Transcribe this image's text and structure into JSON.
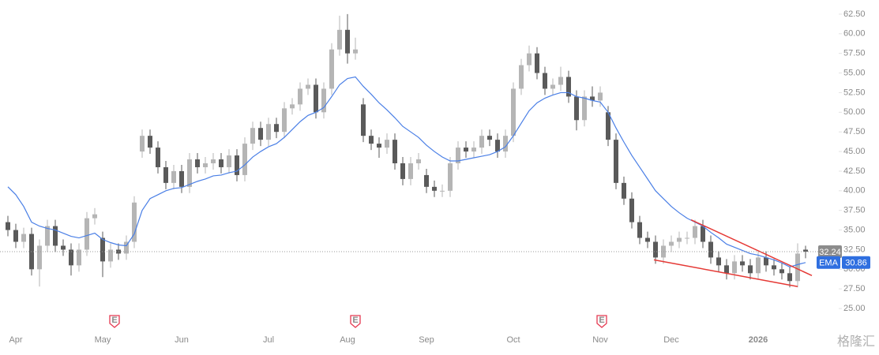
{
  "chart_data": {
    "type": "candlestick",
    "categories": [
      null,
      "Apr",
      null,
      null,
      null,
      null,
      null,
      null,
      null,
      null,
      null,
      null,
      "May",
      null,
      null,
      null,
      null,
      null,
      null,
      null,
      null,
      null,
      "Jun",
      null,
      null,
      null,
      null,
      null,
      null,
      null,
      null,
      null,
      null,
      "Jul",
      null,
      null,
      null,
      null,
      null,
      null,
      null,
      null,
      null,
      "Aug",
      null,
      null,
      null,
      null,
      null,
      null,
      null,
      null,
      null,
      "Sep",
      null,
      null,
      null,
      null,
      null,
      null,
      null,
      null,
      null,
      null,
      "Oct",
      null,
      null,
      null,
      null,
      null,
      null,
      null,
      null,
      null,
      null,
      "Nov",
      null,
      null,
      null,
      null,
      null,
      null,
      null,
      null,
      "Dec",
      null,
      null,
      null,
      null,
      null,
      null,
      null,
      null,
      null,
      null,
      "2026",
      null,
      null,
      null,
      null,
      null,
      null
    ],
    "open": [
      36,
      35,
      33.5,
      34.5,
      30,
      33,
      35.5,
      33,
      32.5,
      30.5,
      32.5,
      36.5,
      34,
      31,
      32.5,
      32,
      33.5,
      45,
      47,
      45.5,
      43,
      41,
      42.5,
      40.5,
      44,
      43,
      43.5,
      44,
      43,
      44.5,
      42,
      46,
      48,
      46.5,
      48.5,
      47.5,
      50.5,
      51,
      53,
      53.5,
      50,
      53,
      58,
      60.5,
      57.5,
      51,
      47,
      46,
      45.5,
      46.5,
      43.5,
      41.5,
      43.5,
      42,
      40.5,
      40,
      40,
      43.5,
      45.5,
      45,
      45.5,
      47,
      46.5,
      45,
      47,
      53,
      56,
      57.5,
      55,
      53,
      53.5,
      54.5,
      52,
      49,
      52,
      51.5,
      50,
      46.5,
      41,
      39,
      36,
      34,
      33.5,
      31.5,
      33,
      33.5,
      34,
      34,
      35.5,
      33.5,
      31.5,
      30.5,
      29.5,
      31,
      30.5,
      29.5,
      31.5,
      30.5,
      30,
      29.5,
      28.5,
      32.5
    ],
    "high": [
      36.8,
      35.8,
      35.3,
      35.3,
      33.8,
      36.3,
      36.3,
      33.8,
      33.3,
      33.3,
      37.3,
      37.8,
      34.8,
      33.3,
      33.3,
      34.3,
      39.3,
      47.8,
      47.8,
      46.3,
      43.8,
      43.3,
      43.3,
      44.8,
      44.8,
      44.3,
      44.8,
      44.8,
      45.3,
      45.3,
      46.8,
      48.8,
      48.8,
      49.3,
      49.3,
      51.3,
      51.8,
      53.8,
      54.3,
      54.3,
      53.8,
      58.8,
      62.3,
      62.5,
      59.5,
      51.8,
      47.8,
      46.8,
      47.3,
      47.3,
      44.3,
      44.3,
      44.8,
      42.8,
      41.3,
      40.8,
      44.3,
      46.3,
      46.3,
      46.3,
      47.8,
      47.8,
      47.3,
      47.8,
      53.8,
      56.8,
      58.5,
      58.3,
      55.8,
      54.3,
      55.8,
      55.3,
      52.8,
      52.8,
      53.3,
      53.3,
      50.8,
      47.3,
      41.8,
      39.8,
      36.8,
      34.8,
      34.3,
      33.8,
      34.3,
      34.8,
      34.8,
      36.3,
      36.3,
      34.3,
      32.3,
      31.3,
      31.8,
      31.8,
      31.3,
      32.3,
      32.3,
      31.3,
      30.8,
      30.3,
      33.3,
      33
    ],
    "low": [
      34.2,
      32.7,
      32.7,
      29.2,
      27.8,
      32.2,
      32.2,
      31.7,
      29.2,
      29.7,
      31.7,
      35.7,
      29,
      30.2,
      31.2,
      31.2,
      32.7,
      44.2,
      44.7,
      42.2,
      40.2,
      40.2,
      39.7,
      39.7,
      42.2,
      42.2,
      42.7,
      42.2,
      42.2,
      41.2,
      41.2,
      45.2,
      45.7,
      45.7,
      46.7,
      46.7,
      49.7,
      50.2,
      52.2,
      49.2,
      49.2,
      52.2,
      57.2,
      56.2,
      56.7,
      46.2,
      45.2,
      44.2,
      44.7,
      42.7,
      40.7,
      40.7,
      42.7,
      39.7,
      39.2,
      39.2,
      39.2,
      42.7,
      44.2,
      44.2,
      44.7,
      45.7,
      44.2,
      44.2,
      46.2,
      52.2,
      55.2,
      54.2,
      52.2,
      52.2,
      52.7,
      51.2,
      47.7,
      48.2,
      50.7,
      50.7,
      45.7,
      40.2,
      38.2,
      35.2,
      33.2,
      32.7,
      30.7,
      30.7,
      32.2,
      32.7,
      33.2,
      33.2,
      32.7,
      30.7,
      29.7,
      28.7,
      28.7,
      29.7,
      28.7,
      28.7,
      29.7,
      29.2,
      28.7,
      27.7,
      27.7,
      31.4
    ],
    "close": [
      35,
      33.5,
      34.5,
      30,
      33,
      35.5,
      33,
      32.5,
      30.5,
      32.5,
      36.5,
      37,
      31,
      32.5,
      32,
      33.5,
      38.5,
      47,
      45.5,
      43,
      41,
      42.5,
      40.5,
      44,
      43,
      43.5,
      44,
      43,
      44.5,
      42,
      46,
      48,
      46.5,
      48.5,
      47.5,
      50.5,
      51,
      53,
      53.5,
      50,
      53,
      58,
      60.5,
      57.5,
      58,
      47,
      46,
      45.5,
      46.5,
      43.5,
      41.5,
      43.5,
      44,
      40.5,
      40,
      40,
      43.5,
      45.5,
      45,
      45.5,
      47,
      46.5,
      45,
      47,
      53,
      56,
      57.5,
      55,
      53,
      53.5,
      54.5,
      52,
      49,
      52,
      51.5,
      52.5,
      46.5,
      41,
      39,
      36,
      34,
      33.5,
      31.5,
      33,
      33.5,
      34,
      34,
      35.5,
      33.5,
      31.5,
      30.5,
      29.5,
      31,
      30.5,
      29.5,
      31.5,
      30.5,
      30,
      29.5,
      28.5,
      32,
      32.24
    ],
    "up_color": "#b5b5b5",
    "down_color": "#5a5a5a",
    "series": [
      {
        "name": "EMA",
        "color": "#4a7fe6",
        "values": [
          40.5,
          39.5,
          38,
          36,
          35.5,
          35.2,
          35,
          34.6,
          34.2,
          34,
          34.3,
          34.6,
          33.8,
          33.4,
          33.1,
          33,
          34.5,
          37.5,
          39,
          39.5,
          40,
          40.3,
          40.4,
          40.8,
          41.2,
          41.5,
          41.9,
          42,
          42.3,
          42.5,
          43.3,
          44.3,
          45,
          45.6,
          46,
          46.8,
          47.8,
          48.8,
          49.6,
          50,
          50.6,
          52,
          53.5,
          54.3,
          54.5,
          53.3,
          52.3,
          51.2,
          50.3,
          49.3,
          48.2,
          47.5,
          46.8,
          45.8,
          45,
          44.3,
          43.8,
          43.8,
          44,
          44.2,
          44.4,
          44.6,
          45,
          45.6,
          47,
          48.6,
          50.2,
          51.2,
          51.8,
          52.2,
          52.5,
          52.5,
          52,
          51.8,
          51.5,
          51.3,
          50,
          48,
          46.2,
          44.5,
          43,
          41.5,
          40,
          39,
          38,
          37.2,
          36.5,
          36,
          35.5,
          34.7,
          34,
          33.2,
          32.8,
          32.4,
          32,
          31.8,
          31.5,
          31.2,
          30.8,
          30.3,
          30.6,
          30.86
        ]
      }
    ],
    "ylim": [
      23.1,
      64.3
    ],
    "yticks": [
      {
        "value": 25,
        "label": "25.00"
      },
      {
        "value": 27.5,
        "label": "27.50"
      },
      {
        "value": 30,
        "label": "30.00"
      },
      {
        "value": 32.5,
        "label": "32.50"
      },
      {
        "value": 35,
        "label": "35.00"
      },
      {
        "value": 37.5,
        "label": "37.50"
      },
      {
        "value": 40,
        "label": "40.00"
      },
      {
        "value": 42.5,
        "label": "42.50"
      },
      {
        "value": 45,
        "label": "45.00"
      },
      {
        "value": 47.5,
        "label": "47.50"
      },
      {
        "value": 50,
        "label": "50.00"
      },
      {
        "value": 52.5,
        "label": "52.50"
      },
      {
        "value": 55,
        "label": "55.00"
      },
      {
        "value": 57.5,
        "label": "57.50"
      },
      {
        "value": 60,
        "label": "60.00"
      },
      {
        "value": 62.5,
        "label": "62.50"
      }
    ],
    "last_price_line": true,
    "trendlines": [
      {
        "color": "#e53935",
        "points": [
          [
            86.5,
            36.3
          ],
          [
            101.8,
            29.2
          ]
        ]
      },
      {
        "color": "#e53935",
        "points": [
          [
            81.8,
            31.2
          ],
          [
            100,
            27.8
          ]
        ]
      }
    ],
    "events": [
      {
        "label": "E",
        "index": 13.5
      },
      {
        "label": "E",
        "index": 44
      },
      {
        "label": "E",
        "index": 75.2
      }
    ],
    "watermark": "格隆汇"
  }
}
